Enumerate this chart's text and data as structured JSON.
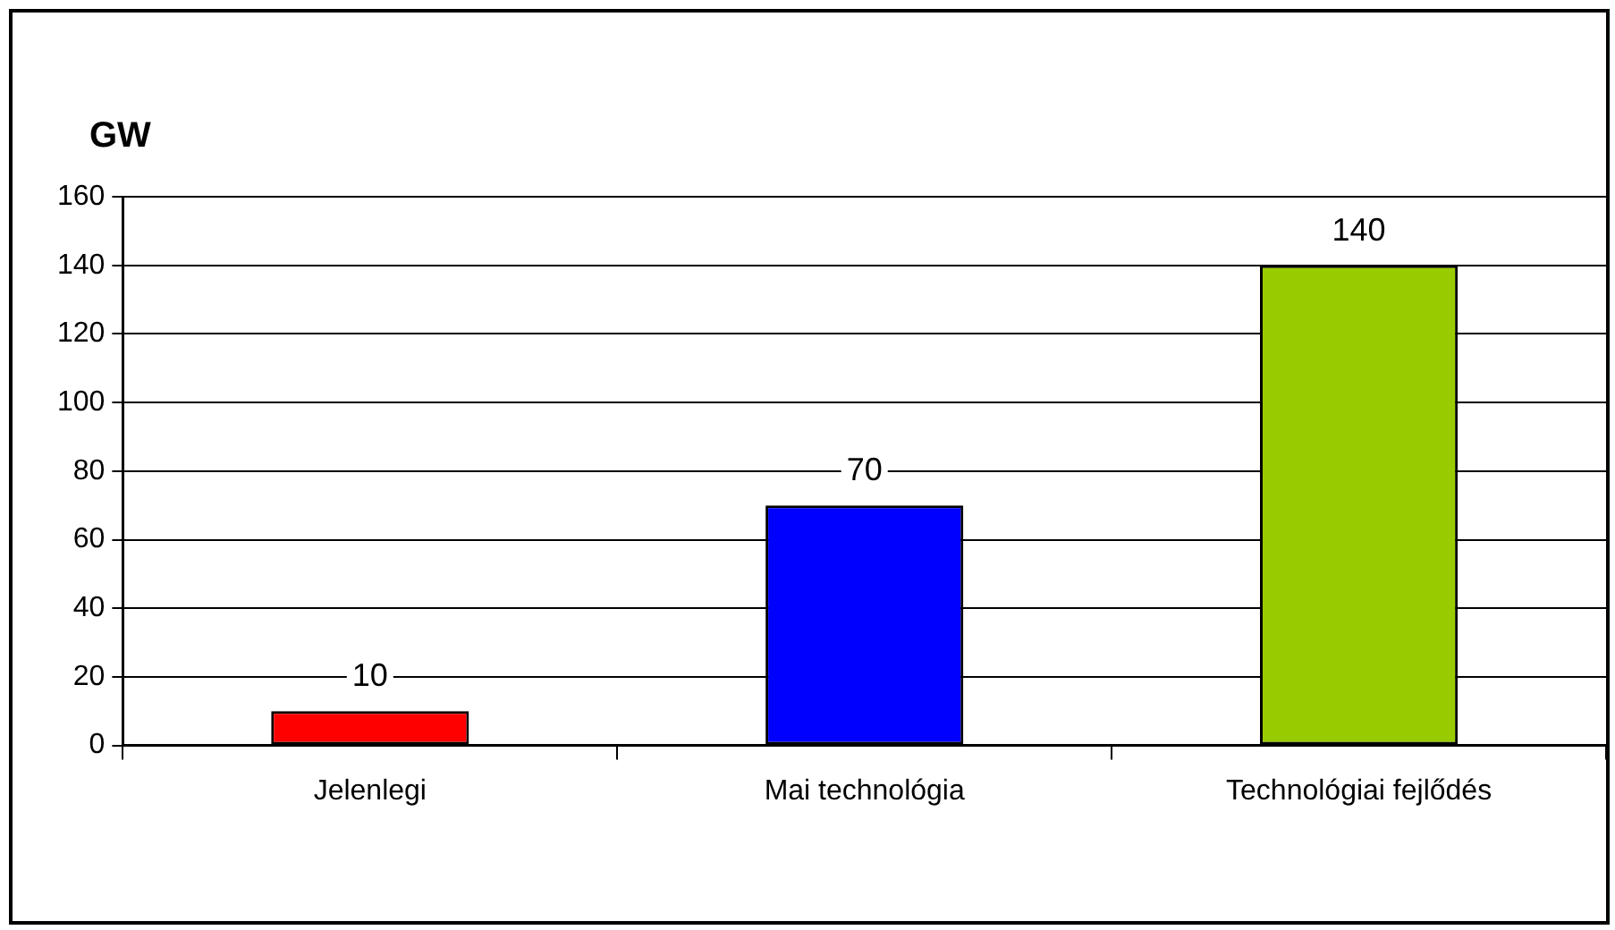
{
  "chart_data": {
    "type": "bar",
    "ylabel": "GW",
    "categories": [
      "Jelenlegi",
      "Mai technológia",
      "Technológiai fejlődés"
    ],
    "values": [
      10,
      70,
      140
    ],
    "colors": [
      "#ff0000",
      "#0000ff",
      "#99cc00"
    ],
    "ylim": [
      0,
      160
    ],
    "yticks": [
      0,
      20,
      40,
      60,
      80,
      100,
      120,
      140,
      160
    ],
    "grid": "y",
    "legend": false,
    "data_labels": true
  }
}
